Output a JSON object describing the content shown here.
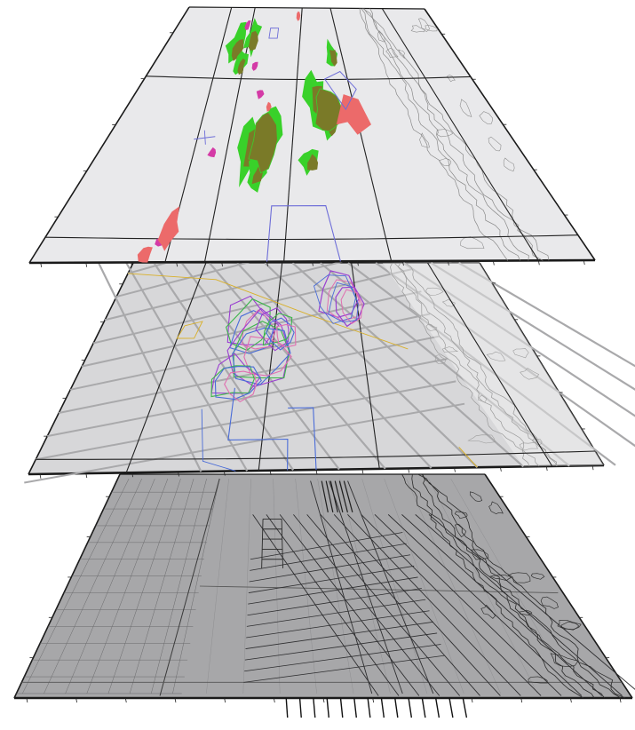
{
  "layers": [
    {
      "id": "top",
      "kind": "features",
      "fill": "#e9e9eb",
      "frame_color": "#1a1a1a",
      "line_color": "#222222",
      "coast_color": "#8a8a8a",
      "feature_colors": {
        "green": "#39d12a",
        "olive": "#7a7a28",
        "magenta": "#d43aa6",
        "salmon": "#ec6a6a",
        "outline": "#6e6ed8"
      }
    },
    {
      "id": "middle",
      "kind": "outlines",
      "fill": "#d7d7d9",
      "frame_color": "#1a1a1a",
      "line_color": "#222222",
      "grid_color": "#a9a9ab",
      "coast_color": "#9a9a9a",
      "outline_colors": [
        "#9a3fd0",
        "#3cb54a",
        "#4a6cd8",
        "#d9b02a",
        "#e06fb0"
      ]
    },
    {
      "id": "bottom",
      "kind": "survey",
      "fill": "#a7a7a9",
      "frame_color": "#1a1a1a",
      "line_color": "#3a3a3a",
      "coast_color": "#2a2a2a"
    }
  ]
}
